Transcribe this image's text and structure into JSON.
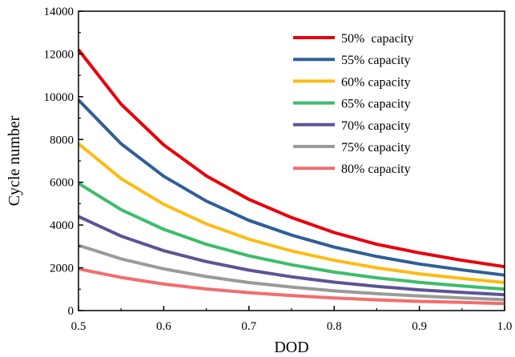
{
  "chart_data": {
    "type": "line",
    "xlabel": "DOD",
    "ylabel": "Cycle number",
    "xlim": [
      0.5,
      1.0
    ],
    "ylim": [
      0,
      14000
    ],
    "x_ticks": [
      "0.5",
      "0.6",
      "0.7",
      "0.8",
      "0.9",
      "1.0"
    ],
    "y_ticks": [
      "0",
      "2000",
      "4000",
      "6000",
      "8000",
      "10000",
      "12000",
      "14000"
    ],
    "legend_position": "top-right",
    "grid": false,
    "x": [
      0.5,
      0.55,
      0.6,
      0.65,
      0.7,
      0.75,
      0.8,
      0.85,
      0.9,
      0.95,
      1.0
    ],
    "series": [
      {
        "name": "50%  capacity",
        "color": "#e8000b",
        "values": [
          12200,
          9650,
          7750,
          6300,
          5200,
          4350,
          3650,
          3100,
          2700,
          2350,
          2050
        ]
      },
      {
        "name": "55% capacity",
        "color": "#2f5f98",
        "values": [
          9850,
          7800,
          6280,
          5120,
          4220,
          3530,
          2970,
          2530,
          2180,
          1900,
          1660
        ]
      },
      {
        "name": "60% capacity",
        "color": "#fdbb14",
        "values": [
          7800,
          6170,
          4970,
          4050,
          3340,
          2790,
          2350,
          2000,
          1720,
          1500,
          1310
        ]
      },
      {
        "name": "65% capacity",
        "color": "#3dbd6b",
        "values": [
          5950,
          4720,
          3800,
          3100,
          2560,
          2140,
          1800,
          1530,
          1320,
          1150,
          1000
        ]
      },
      {
        "name": "70% capacity",
        "color": "#5b5596",
        "values": [
          4400,
          3480,
          2800,
          2290,
          1890,
          1580,
          1330,
          1130,
          970,
          850,
          740
        ]
      },
      {
        "name": "75% capacity",
        "color": "#9a9a9a",
        "values": [
          3050,
          2420,
          1950,
          1590,
          1310,
          1100,
          920,
          790,
          680,
          590,
          510
        ]
      },
      {
        "name": "80% capacity",
        "color": "#f26d6d",
        "values": [
          1950,
          1550,
          1240,
          1010,
          840,
          700,
          590,
          500,
          430,
          380,
          330
        ]
      }
    ]
  }
}
